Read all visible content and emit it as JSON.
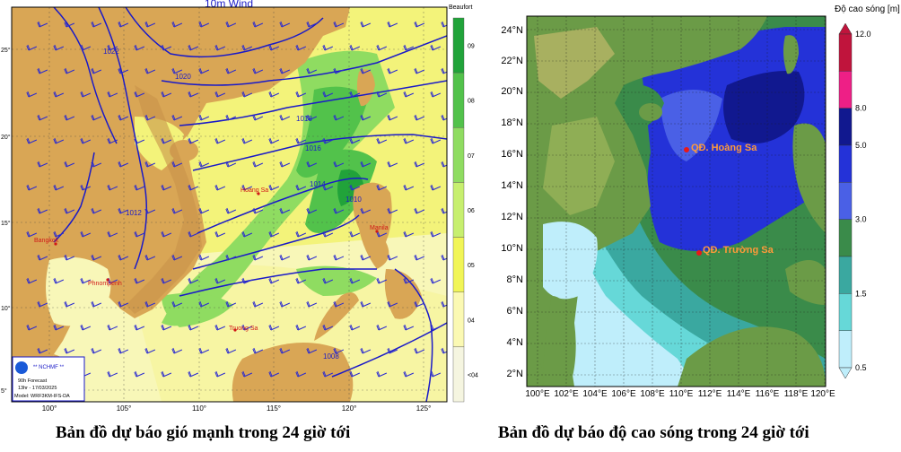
{
  "wind_map": {
    "title": "10m Wind",
    "legend_title": "Beaufort",
    "legend_levels": [
      "09",
      "08",
      "07",
      "06",
      "05",
      "04",
      "<04"
    ],
    "legend_colors": [
      "#21a33a",
      "#52c24b",
      "#8fdc61",
      "#c7ef6f",
      "#f1f557",
      "#fbf9b3",
      "#f5f5e0"
    ],
    "lat_labels": [
      "25°",
      "20°",
      "15°",
      "10°",
      "5°"
    ],
    "lon_labels": [
      "100°",
      "105°",
      "110°",
      "115°",
      "120°",
      "125°"
    ],
    "isobars": [
      "1022",
      "1020",
      "1018",
      "1016",
      "1014",
      "1012",
      "1010",
      "1008"
    ],
    "places": [
      "Bangkok",
      "Phnompenh",
      "Hoang Sa",
      "Truong Sa",
      "Manila"
    ],
    "logo": {
      "agency": "** NCHMF **",
      "line1": "90h Forecast",
      "line2": "13hr - 17/03/2025",
      "line3": "Model: WRF3KM-IFS-DA"
    },
    "caption": "Bản đồ dự báo gió mạnh trong 24 giờ tới"
  },
  "wave_map": {
    "legend_title": "Độ cao sóng [m]",
    "legend_levels": [
      "12.0",
      "8.0",
      "5.0",
      "3.0",
      "1.5",
      "0.5"
    ],
    "legend_colors": [
      "#c0143c",
      "#ee1f86",
      "#11188f",
      "#2432d8",
      "#4a60e6",
      "#3a8b4a",
      "#3aa8a0",
      "#66d8d8",
      "#bfeefb"
    ],
    "lat_labels": [
      "24°N",
      "22°N",
      "20°N",
      "18°N",
      "16°N",
      "14°N",
      "12°N",
      "10°N",
      "8°N",
      "6°N",
      "4°N",
      "2°N"
    ],
    "lon_labels": [
      "100°E",
      "102°E",
      "104°E",
      "106°E",
      "108°E",
      "110°E",
      "112°E",
      "114°E",
      "116°E",
      "118°E",
      "120°E"
    ],
    "markers": [
      {
        "name": "QĐ. Hoàng Sa"
      },
      {
        "name": "QĐ. Trường Sa"
      }
    ],
    "caption": "Bản đồ dự báo độ cao sóng trong 24 giờ tới"
  }
}
